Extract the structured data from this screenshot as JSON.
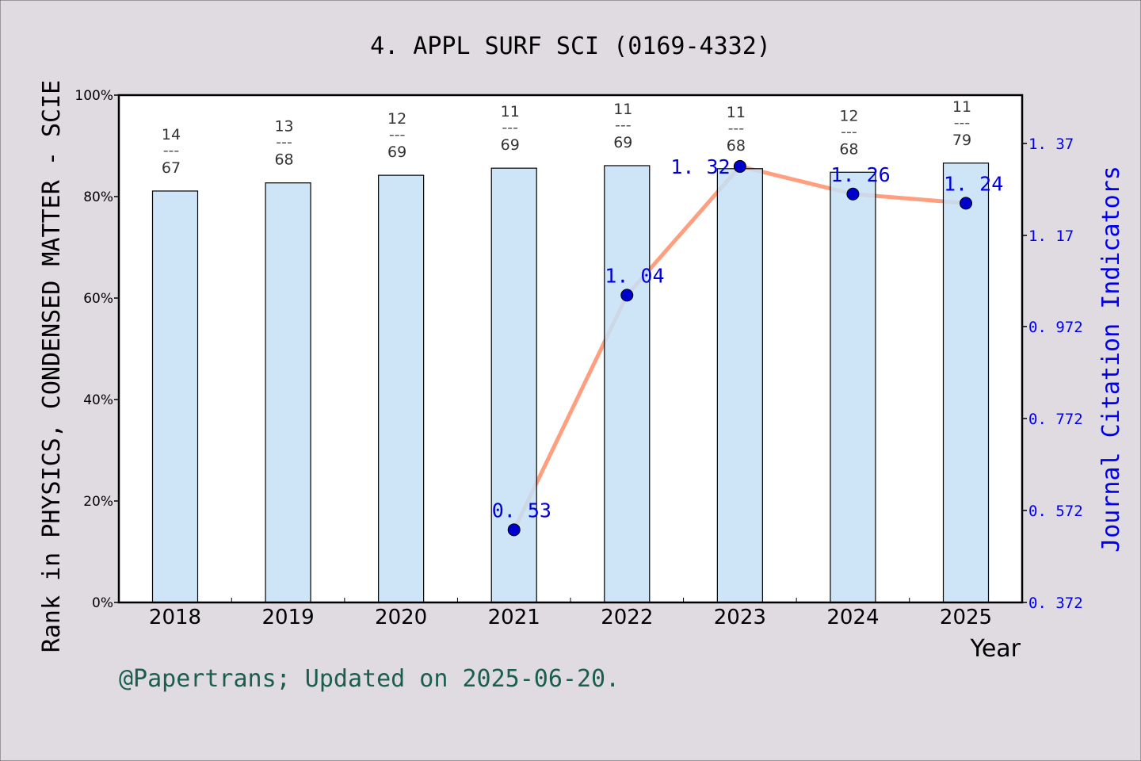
{
  "chart_data": {
    "type": "bar",
    "title": "4. APPL SURF SCI (0169-4332)",
    "xlabel": "Year",
    "ylabel": "Rank in PHYSICS, CONDENSED MATTER - SCIE",
    "y2label": "Journal Citation Indicators",
    "categories": [
      "2018",
      "2019",
      "2020",
      "2021",
      "2022",
      "2023",
      "2024",
      "2025"
    ],
    "ylim": [
      0,
      100
    ],
    "yticks": [
      "0%",
      "20%",
      "40%",
      "60%",
      "80%",
      "100%"
    ],
    "y2lim": [
      0.372,
      1.475
    ],
    "y2ticks": [
      "0.372",
      "0.572",
      "0.772",
      "0.972",
      "1.17",
      "1.37"
    ],
    "bar_series": {
      "values": [
        81.1,
        82.7,
        84.2,
        85.6,
        86.1,
        85.5,
        84.8,
        86.6
      ],
      "rank": [
        "14",
        "13",
        "12",
        "11",
        "11",
        "11",
        "12",
        "11"
      ],
      "total": [
        "67",
        "68",
        "69",
        "69",
        "69",
        "68",
        "68",
        "79"
      ],
      "fraction_separator": "---",
      "color": "#c5e0f7"
    },
    "line_series": {
      "years": [
        "2021",
        "2022",
        "2023",
        "2024",
        "2025"
      ],
      "values": [
        0.53,
        1.04,
        1.32,
        1.26,
        1.24
      ],
      "labels": [
        "0.53",
        "1.04",
        "1.32",
        "1.26",
        "1.24"
      ],
      "line_color": "#ff9f7f",
      "marker_color": "#0000cc"
    },
    "grid": false
  },
  "footer": {
    "credit": "@Papertrans; Updated on 2025-06-20."
  }
}
